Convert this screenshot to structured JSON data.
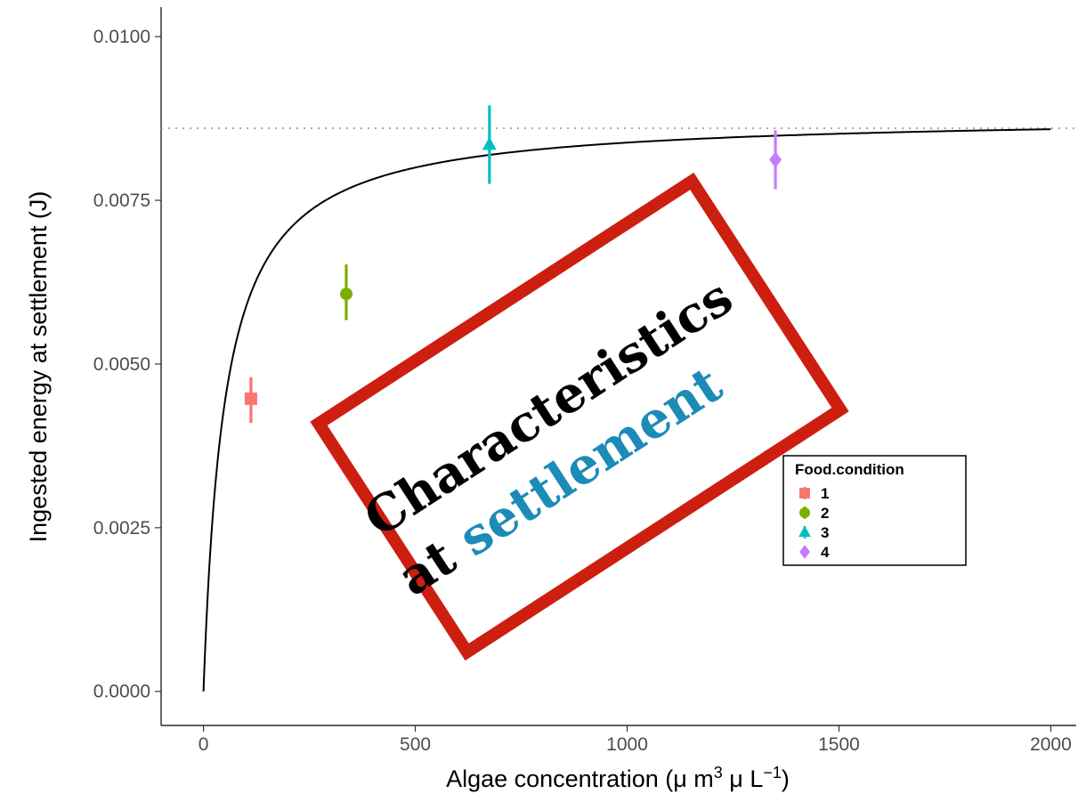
{
  "chart_data": {
    "type": "scatter",
    "title": "",
    "xlabel": "Algae concentration (μ m³ μ L⁻¹)",
    "xlabel_parts": {
      "prefix": "Algae concentration (",
      "mu1": "μ",
      "m": " m",
      "m_exp": "3",
      "mu2": " μ",
      "L": " L",
      "L_exp": "−1",
      "suffix": ")"
    },
    "ylabel": "Ingested energy at settlement (J)",
    "xlim": [
      -100,
      2060
    ],
    "ylim": [
      -0.00052,
      0.01045
    ],
    "x_ticks": [
      0,
      500,
      1000,
      1500,
      2000
    ],
    "x_tick_labels": [
      "0",
      "500",
      "1000",
      "1500",
      "2000"
    ],
    "y_ticks": [
      0.0,
      0.0025,
      0.005,
      0.0075,
      0.01
    ],
    "y_tick_labels": [
      "0.0000",
      "0.0025",
      "0.0050",
      "0.0075",
      "0.0100"
    ],
    "grid": false,
    "asymptote": 0.0086,
    "curve": {
      "type": "saturating",
      "ymax": 0.0088,
      "half_saturation": 50,
      "x_range": [
        0,
        2000
      ]
    },
    "series": [
      {
        "name": "1",
        "shape": "square",
        "color": "#F8766D",
        "x": 112,
        "y": 0.00447,
        "ymin": 0.0041,
        "ymax": 0.0048
      },
      {
        "name": "2",
        "shape": "circle",
        "color": "#7CAE00",
        "x": 337,
        "y": 0.00607,
        "ymin": 0.00567,
        "ymax": 0.00652
      },
      {
        "name": "3",
        "shape": "triangle",
        "color": "#00BFC4",
        "x": 675,
        "y": 0.00835,
        "ymin": 0.00775,
        "ymax": 0.00895
      },
      {
        "name": "4",
        "shape": "diamond",
        "color": "#C77CFF",
        "x": 1350,
        "y": 0.00812,
        "ymin": 0.00767,
        "ymax": 0.00857
      }
    ],
    "legend": {
      "title": "Food.condition",
      "placement": "right"
    }
  },
  "stamp": {
    "line1": "Characteristics",
    "line2_prefix": "at ",
    "line2_highlight": "settlement",
    "border_color": "#CC1F10",
    "text_color": "#000000",
    "highlight_color": "#1D8BB8"
  }
}
